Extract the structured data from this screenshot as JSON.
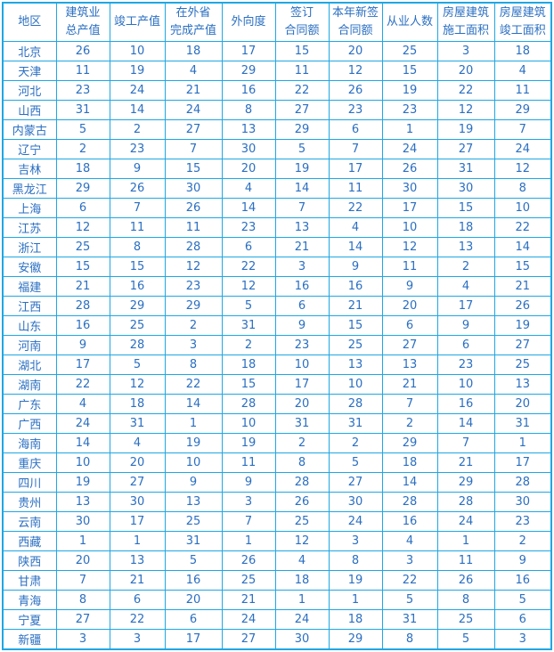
{
  "colors": {
    "border": "#1ea7e4",
    "text": "#2a6fc2"
  },
  "headers": [
    [
      "地区"
    ],
    [
      "建筑业",
      "总产值"
    ],
    [
      "竣工产值"
    ],
    [
      "在外省",
      "完成产值"
    ],
    [
      "外向度"
    ],
    [
      "签订",
      "合同额"
    ],
    [
      "本年新签",
      "合同额"
    ],
    [
      "从业人数"
    ],
    [
      "房屋建筑",
      "施工面积"
    ],
    [
      "房屋建筑",
      "竣工面积"
    ]
  ],
  "rows": [
    [
      "北京",
      26,
      10,
      18,
      17,
      15,
      20,
      25,
      3,
      18
    ],
    [
      "天津",
      11,
      19,
      4,
      29,
      11,
      12,
      15,
      20,
      4
    ],
    [
      "河北",
      23,
      24,
      21,
      16,
      22,
      26,
      19,
      22,
      11
    ],
    [
      "山西",
      31,
      14,
      24,
      8,
      27,
      23,
      23,
      12,
      29
    ],
    [
      "内蒙古",
      5,
      2,
      27,
      13,
      29,
      6,
      1,
      19,
      7
    ],
    [
      "辽宁",
      2,
      23,
      7,
      30,
      5,
      7,
      24,
      27,
      24
    ],
    [
      "吉林",
      18,
      9,
      15,
      20,
      19,
      17,
      26,
      31,
      12
    ],
    [
      "黑龙江",
      29,
      26,
      30,
      4,
      14,
      11,
      30,
      30,
      8
    ],
    [
      "上海",
      6,
      7,
      26,
      14,
      7,
      22,
      17,
      15,
      10
    ],
    [
      "江苏",
      12,
      11,
      11,
      23,
      13,
      4,
      10,
      18,
      22
    ],
    [
      "浙江",
      25,
      8,
      28,
      6,
      21,
      14,
      12,
      13,
      14
    ],
    [
      "安徽",
      15,
      15,
      12,
      22,
      3,
      9,
      11,
      2,
      15
    ],
    [
      "福建",
      21,
      16,
      23,
      12,
      16,
      16,
      9,
      4,
      21
    ],
    [
      "江西",
      28,
      29,
      29,
      5,
      6,
      21,
      20,
      17,
      26
    ],
    [
      "山东",
      16,
      25,
      2,
      31,
      9,
      15,
      6,
      9,
      19
    ],
    [
      "河南",
      9,
      28,
      3,
      2,
      23,
      25,
      27,
      6,
      27
    ],
    [
      "湖北",
      17,
      5,
      8,
      18,
      10,
      13,
      13,
      23,
      25
    ],
    [
      "湖南",
      22,
      12,
      22,
      15,
      17,
      10,
      21,
      10,
      13
    ],
    [
      "广东",
      4,
      18,
      14,
      28,
      20,
      28,
      7,
      16,
      20
    ],
    [
      "广西",
      24,
      31,
      1,
      10,
      31,
      31,
      2,
      14,
      31
    ],
    [
      "海南",
      14,
      4,
      19,
      19,
      2,
      2,
      29,
      7,
      1
    ],
    [
      "重庆",
      10,
      20,
      10,
      11,
      8,
      5,
      18,
      21,
      17
    ],
    [
      "四川",
      19,
      27,
      9,
      9,
      28,
      27,
      14,
      29,
      28
    ],
    [
      "贵州",
      13,
      30,
      13,
      3,
      26,
      30,
      28,
      28,
      30
    ],
    [
      "云南",
      30,
      17,
      25,
      7,
      25,
      24,
      16,
      24,
      23
    ],
    [
      "西藏",
      1,
      1,
      31,
      1,
      12,
      3,
      4,
      1,
      2
    ],
    [
      "陕西",
      20,
      13,
      5,
      26,
      4,
      8,
      3,
      11,
      9
    ],
    [
      "甘肃",
      7,
      21,
      16,
      25,
      18,
      19,
      22,
      26,
      16
    ],
    [
      "青海",
      8,
      6,
      20,
      21,
      1,
      1,
      5,
      8,
      5
    ],
    [
      "宁夏",
      27,
      22,
      6,
      24,
      24,
      18,
      31,
      25,
      6
    ],
    [
      "新疆",
      3,
      3,
      17,
      27,
      30,
      29,
      8,
      5,
      3
    ]
  ]
}
